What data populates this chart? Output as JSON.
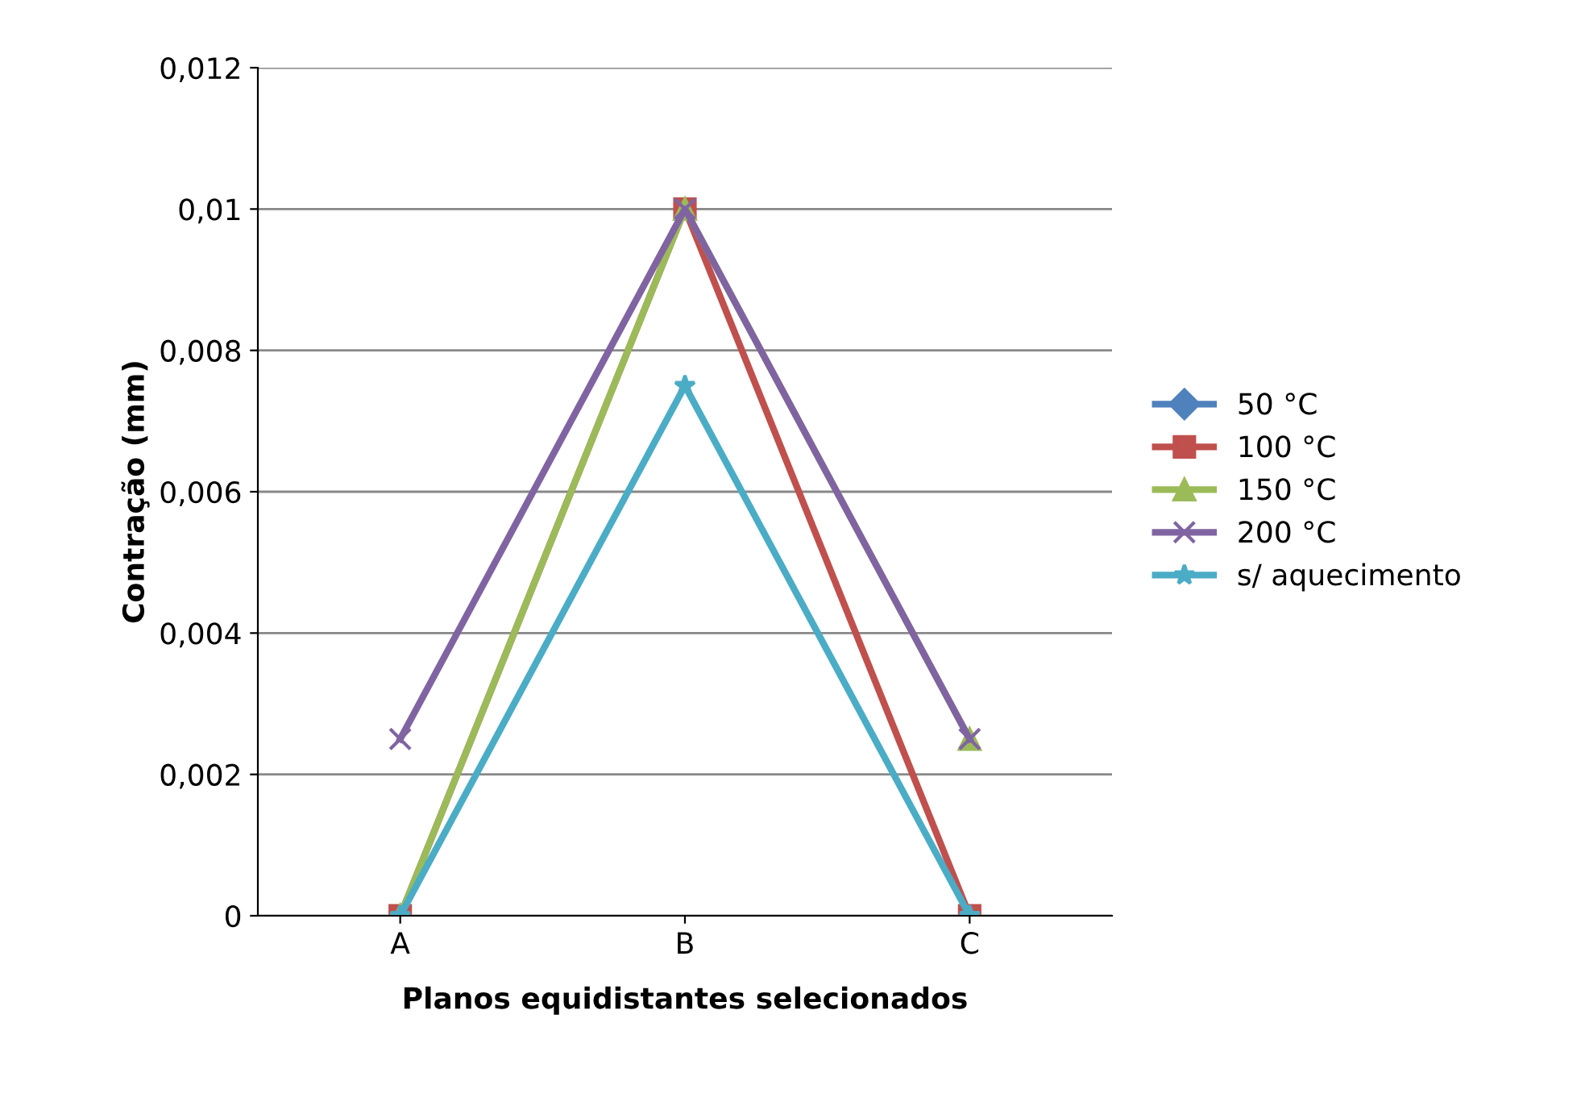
{
  "chart_data": {
    "type": "line",
    "xlabel": "Planos equidistantes selecionados",
    "ylabel": "Contração (mm)",
    "categories": [
      "A",
      "B",
      "C"
    ],
    "series": [
      {
        "name": "50 °C",
        "color": "#4f81bd",
        "marker": "diamond",
        "values": [
          null,
          null,
          null
        ]
      },
      {
        "name": "100 °C",
        "color": "#c0504d",
        "marker": "square",
        "values": [
          0,
          0.01,
          0
        ]
      },
      {
        "name": "150 °C",
        "color": "#9bbb59",
        "marker": "triangle",
        "values": [
          0,
          0.01,
          0.0025
        ]
      },
      {
        "name": "200 °C",
        "color": "#8064a2",
        "marker": "cross",
        "values": [
          0.0025,
          0.01,
          0.0025
        ]
      },
      {
        "name": "s/ aquecimento",
        "color": "#4bacc6",
        "marker": "star",
        "values": [
          0,
          0.0075,
          0
        ]
      }
    ],
    "ylim": [
      0,
      0.012
    ],
    "yticks": [
      {
        "value": 0,
        "label": "0"
      },
      {
        "value": 0.002,
        "label": "0,002"
      },
      {
        "value": 0.004,
        "label": "0,004"
      },
      {
        "value": 0.006,
        "label": "0,006"
      },
      {
        "value": 0.008,
        "label": "0,008"
      },
      {
        "value": 0.01,
        "label": "0,01"
      },
      {
        "value": 0.012,
        "label": "0,012"
      }
    ],
    "grid": "y",
    "legend": "right",
    "line_style": "solid"
  }
}
